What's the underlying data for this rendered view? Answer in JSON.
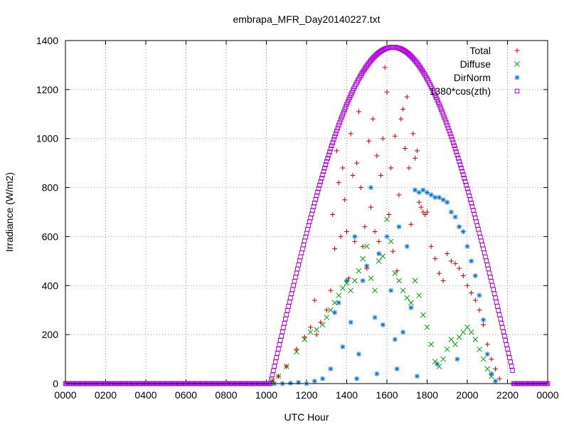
{
  "chart_data": {
    "type": "scatter",
    "title": "embrapa_MFR_Day20140227.txt",
    "xlabel": "UTC Hour",
    "ylabel": "Irradiance (W/m2)",
    "xlim": [
      0,
      24
    ],
    "ylim": [
      0,
      1400
    ],
    "x_ticks": [
      0,
      2,
      4,
      6,
      8,
      10,
      12,
      14,
      16,
      18,
      20,
      22,
      24
    ],
    "x_tick_labels": [
      "0000",
      "0200",
      "0400",
      "0600",
      "0800",
      "1000",
      "1200",
      "1400",
      "1600",
      "1800",
      "2000",
      "2200",
      "0000"
    ],
    "y_ticks": [
      0,
      200,
      400,
      600,
      800,
      1000,
      1200,
      1400
    ],
    "y_tick_labels": [
      "0",
      "200",
      "400",
      "600",
      "800",
      "1000",
      "1200",
      "1400"
    ],
    "grid": true,
    "legend_position": "top-right",
    "sun_model": {
      "sunrise": 10.2,
      "sunset": 22.3,
      "peak": 1373,
      "peak_hour": 16.3
    },
    "series": [
      {
        "name": "Total",
        "marker": "plus",
        "color": "#cc0000",
        "points": [
          [
            10.3,
            10
          ],
          [
            10.6,
            30
          ],
          [
            11.0,
            70
          ],
          [
            11.5,
            140
          ],
          [
            11.9,
            190
          ],
          [
            12.2,
            230
          ],
          [
            12.4,
            340
          ],
          [
            12.5,
            200
          ],
          [
            12.7,
            250
          ],
          [
            13.0,
            300
          ],
          [
            13.2,
            380
          ],
          [
            13.3,
            690
          ],
          [
            13.4,
            550
          ],
          [
            13.5,
            950
          ],
          [
            13.6,
            820
          ],
          [
            13.7,
            600
          ],
          [
            13.8,
            880
          ],
          [
            13.9,
            750
          ],
          [
            14.0,
            620
          ],
          [
            14.1,
            430
          ],
          [
            14.2,
            1020
          ],
          [
            14.3,
            850
          ],
          [
            14.4,
            580
          ],
          [
            14.5,
            900
          ],
          [
            14.6,
            1110
          ],
          [
            14.7,
            800
          ],
          [
            14.8,
            560
          ],
          [
            14.9,
            640
          ],
          [
            15.0,
            470
          ],
          [
            15.1,
            990
          ],
          [
            15.2,
            720
          ],
          [
            15.3,
            1080
          ],
          [
            15.4,
            620
          ],
          [
            15.5,
            930
          ],
          [
            15.6,
            580
          ],
          [
            15.7,
            850
          ],
          [
            15.8,
            1000
          ],
          [
            15.9,
            1290
          ],
          [
            16.0,
            1190
          ],
          [
            16.1,
            690
          ],
          [
            16.2,
            880
          ],
          [
            16.3,
            540
          ],
          [
            16.4,
            1010
          ],
          [
            16.5,
            460
          ],
          [
            16.6,
            770
          ],
          [
            16.7,
            1080
          ],
          [
            16.8,
            1120
          ],
          [
            16.9,
            960
          ],
          [
            17.0,
            1170
          ],
          [
            17.1,
            880
          ],
          [
            17.2,
            650
          ],
          [
            17.3,
            1020
          ],
          [
            17.4,
            920
          ],
          [
            17.5,
            950
          ],
          [
            17.6,
            740
          ],
          [
            17.7,
            720
          ],
          [
            17.8,
            700
          ],
          [
            17.9,
            690
          ],
          [
            18.0,
            700
          ],
          [
            18.2,
            560
          ],
          [
            18.4,
            510
          ],
          [
            18.6,
            450
          ],
          [
            18.8,
            420
          ],
          [
            19.0,
            530
          ],
          [
            19.2,
            500
          ],
          [
            19.4,
            490
          ],
          [
            19.6,
            470
          ],
          [
            19.8,
            440
          ],
          [
            20.0,
            400
          ],
          [
            20.2,
            370
          ],
          [
            20.4,
            340
          ],
          [
            20.6,
            300
          ],
          [
            20.8,
            240
          ],
          [
            21.0,
            160
          ],
          [
            21.2,
            100
          ],
          [
            21.4,
            60
          ],
          [
            21.6,
            20
          ]
        ]
      },
      {
        "name": "Diffuse",
        "marker": "cross",
        "color": "#00a000",
        "points": [
          [
            10.3,
            10
          ],
          [
            10.6,
            30
          ],
          [
            11.0,
            70
          ],
          [
            11.5,
            130
          ],
          [
            11.9,
            180
          ],
          [
            12.2,
            210
          ],
          [
            12.5,
            220
          ],
          [
            12.8,
            240
          ],
          [
            13.0,
            270
          ],
          [
            13.2,
            300
          ],
          [
            13.4,
            330
          ],
          [
            13.6,
            360
          ],
          [
            13.8,
            390
          ],
          [
            14.0,
            410
          ],
          [
            14.2,
            380
          ],
          [
            14.4,
            420
          ],
          [
            14.6,
            460
          ],
          [
            14.8,
            510
          ],
          [
            15.0,
            560
          ],
          [
            15.2,
            430
          ],
          [
            15.4,
            380
          ],
          [
            15.6,
            500
          ],
          [
            15.8,
            520
          ],
          [
            16.0,
            670
          ],
          [
            16.2,
            580
          ],
          [
            16.4,
            450
          ],
          [
            16.6,
            420
          ],
          [
            16.8,
            380
          ],
          [
            17.0,
            350
          ],
          [
            17.2,
            330
          ],
          [
            17.4,
            420
          ],
          [
            17.6,
            360
          ],
          [
            17.8,
            280
          ],
          [
            18.0,
            230
          ],
          [
            18.2,
            160
          ],
          [
            18.4,
            90
          ],
          [
            18.6,
            70
          ],
          [
            18.8,
            100
          ],
          [
            19.0,
            140
          ],
          [
            19.2,
            180
          ],
          [
            19.4,
            160
          ],
          [
            19.6,
            190
          ],
          [
            19.8,
            210
          ],
          [
            20.0,
            230
          ],
          [
            20.2,
            210
          ],
          [
            20.4,
            180
          ],
          [
            20.6,
            140
          ],
          [
            20.8,
            100
          ],
          [
            21.0,
            60
          ],
          [
            21.2,
            30
          ]
        ]
      },
      {
        "name": "DirNorm",
        "marker": "star",
        "color": "#0070e0",
        "points": [
          [
            10.4,
            0
          ],
          [
            10.8,
            0
          ],
          [
            11.2,
            2
          ],
          [
            11.6,
            5
          ],
          [
            12.0,
            0
          ],
          [
            12.4,
            10
          ],
          [
            12.8,
            20
          ],
          [
            13.2,
            60
          ],
          [
            13.4,
            290
          ],
          [
            13.6,
            330
          ],
          [
            13.8,
            150
          ],
          [
            14.0,
            420
          ],
          [
            14.2,
            250
          ],
          [
            14.4,
            600
          ],
          [
            14.6,
            120
          ],
          [
            14.8,
            420
          ],
          [
            15.0,
            480
          ],
          [
            15.2,
            800
          ],
          [
            15.4,
            270
          ],
          [
            15.6,
            530
          ],
          [
            15.8,
            240
          ],
          [
            16.0,
            600
          ],
          [
            16.2,
            380
          ],
          [
            16.4,
            180
          ],
          [
            16.6,
            640
          ],
          [
            16.8,
            210
          ],
          [
            17.0,
            560
          ],
          [
            17.2,
            310
          ],
          [
            17.4,
            790
          ],
          [
            17.6,
            780
          ],
          [
            17.8,
            790
          ],
          [
            18.0,
            780
          ],
          [
            18.2,
            770
          ],
          [
            18.4,
            760
          ],
          [
            18.6,
            760
          ],
          [
            18.8,
            750
          ],
          [
            19.0,
            740
          ],
          [
            19.2,
            700
          ],
          [
            19.4,
            680
          ],
          [
            19.6,
            640
          ],
          [
            19.8,
            620
          ],
          [
            20.0,
            560
          ],
          [
            20.2,
            500
          ],
          [
            20.4,
            440
          ],
          [
            20.6,
            360
          ],
          [
            20.8,
            260
          ],
          [
            21.0,
            120
          ],
          [
            21.2,
            40
          ],
          [
            21.4,
            10
          ],
          [
            14.5,
            20
          ],
          [
            15.5,
            40
          ],
          [
            16.5,
            60
          ],
          [
            17.5,
            30
          ],
          [
            18.5,
            80
          ],
          [
            19.5,
            100
          ]
        ]
      },
      {
        "name": "1380*cos(zth)",
        "marker": "square",
        "color": "#b000e0",
        "model": "sun_curve"
      }
    ]
  }
}
